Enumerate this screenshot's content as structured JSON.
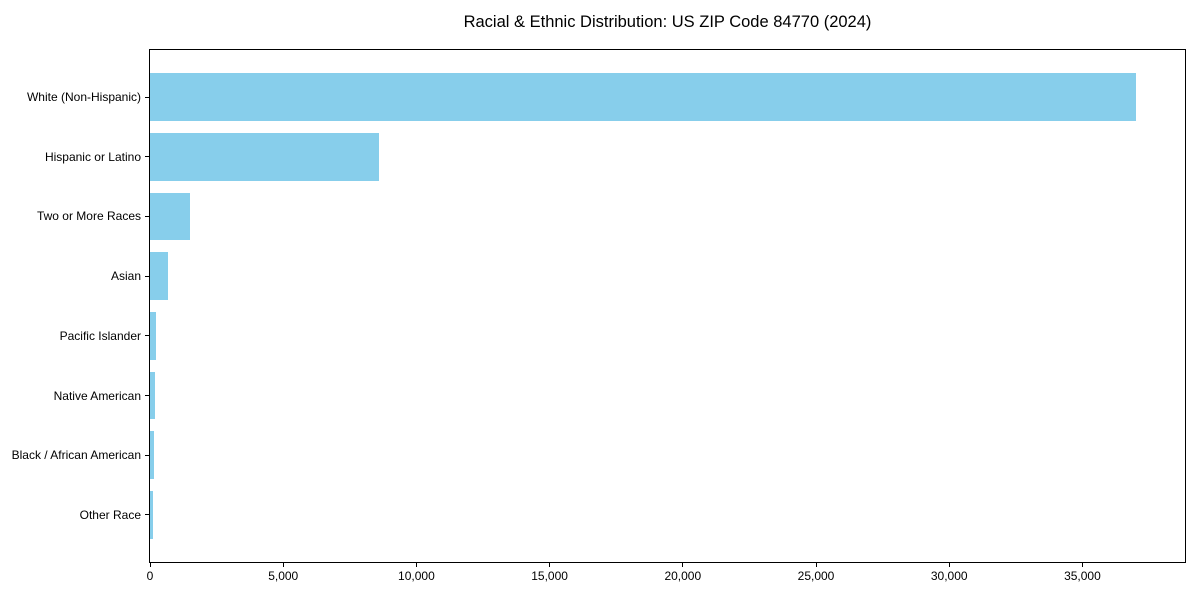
{
  "chart_data": {
    "type": "bar",
    "orientation": "horizontal",
    "title": "Racial & Ethnic Distribution: US ZIP Code 84770 (2024)",
    "categories": [
      "White (Non-Hispanic)",
      "Hispanic or Latino",
      "Two or More Races",
      "Asian",
      "Pacific Islander",
      "Native American",
      "Black / African American",
      "Other Race"
    ],
    "values": [
      37000,
      8600,
      1500,
      660,
      240,
      190,
      150,
      110
    ],
    "xlabel": "",
    "ylabel": "",
    "xlim": [
      0,
      38850
    ],
    "xticks": [
      0,
      5000,
      10000,
      15000,
      20000,
      25000,
      30000,
      35000
    ],
    "grid": false,
    "legend": null,
    "bar_color": "#87CEEB",
    "axis_color": "#000000",
    "background_color": "#ffffff"
  }
}
